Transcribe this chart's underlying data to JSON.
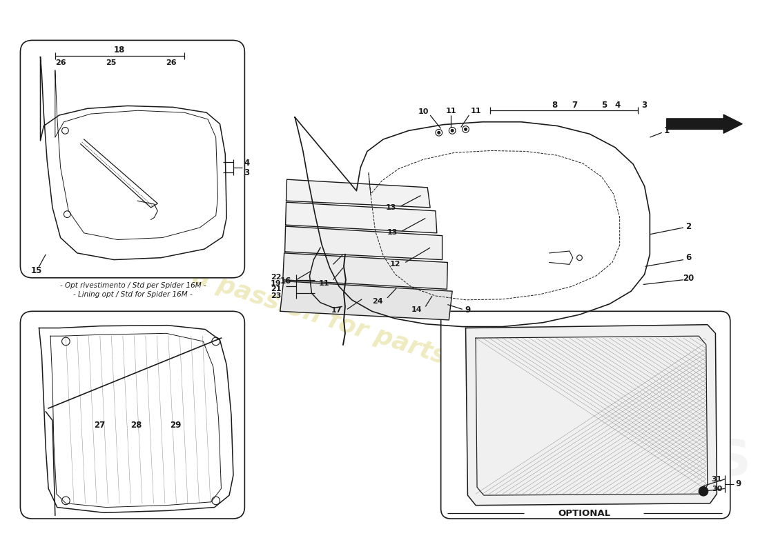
{
  "background_color": "#ffffff",
  "line_color": "#1a1a1a",
  "caption1": "- Opt rivestimento / Std per Spider 16M -",
  "caption2": "- Lining opt / Std for Spider 16M -",
  "optional_label": "OPTIONAL",
  "watermark": "a passion for parts since 1985"
}
